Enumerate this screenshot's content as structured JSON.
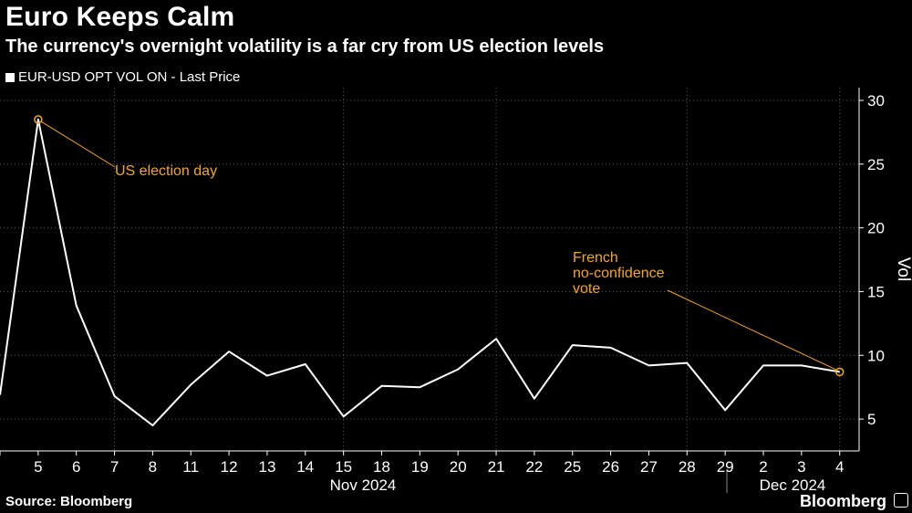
{
  "header": {
    "title": "Euro Keeps Calm",
    "subtitle": "The currency's overnight volatility is a far cry from US election levels"
  },
  "footer": {
    "source": "Source: Bloomberg",
    "brand": "Bloomberg"
  },
  "colors": {
    "background": "#000000",
    "line": "#ffffff",
    "annotation": "#f5a623",
    "grid": "#555555"
  },
  "chart_data": {
    "type": "line",
    "title": "Euro Keeps Calm",
    "subtitle": "The currency's overnight volatility is a far cry from US election levels",
    "series": [
      {
        "name": "EUR-USD OPT VOL ON - Last Price",
        "values": [
          6.9,
          28.5,
          13.9,
          6.8,
          4.5,
          7.7,
          10.3,
          8.4,
          9.3,
          5.2,
          7.6,
          7.5,
          8.9,
          11.3,
          6.6,
          10.8,
          10.6,
          9.2,
          9.4,
          5.7,
          9.2,
          9.2,
          8.7
        ]
      }
    ],
    "x": [
      "",
      "5",
      "6",
      "7",
      "8",
      "11",
      "12",
      "13",
      "14",
      "15",
      "18",
      "19",
      "20",
      "21",
      "22",
      "25",
      "26",
      "27",
      "28",
      "29",
      "2",
      "3",
      "4"
    ],
    "x_group_labels": [
      "Nov 2024",
      "Dec 2024"
    ],
    "ylabel": "Vol",
    "xlabel": "",
    "ylim": [
      2.5,
      31
    ],
    "yticks": [
      5,
      10,
      15,
      20,
      25,
      30
    ],
    "grid": true,
    "axis_side": "right",
    "annotations": [
      {
        "text": "US election day",
        "point_index": 1
      },
      {
        "text": "French no-confidence vote",
        "lines": [
          "French",
          "no-confidence",
          "vote"
        ],
        "point_index": 22
      }
    ]
  }
}
